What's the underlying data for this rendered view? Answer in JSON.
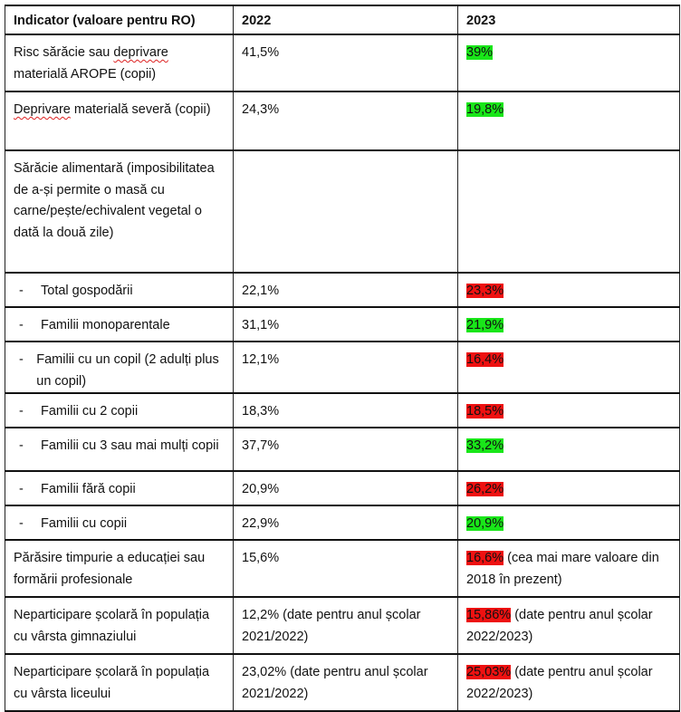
{
  "header": {
    "indicator": "Indicator (valoare pentru RO)",
    "y2022": "2022",
    "y2023": "2023"
  },
  "colors": {
    "better": "#19e619",
    "worse": "#ee1111"
  },
  "rows": [
    {
      "label": "Risc sărăcie sau deprivare materială AROPE (copii)",
      "v2022": "41,5%",
      "v2023": "39%",
      "v2023_note": "",
      "trend": "green",
      "sub": false,
      "h": 63
    },
    {
      "label": "Deprivare materială severă  (copii)",
      "v2022": "24,3%",
      "v2023": "19,8%",
      "v2023_note": "",
      "trend": "green",
      "sub": false,
      "h": 65
    },
    {
      "label": "Sărăcie alimentară (imposibilitatea de a-și permite o masă cu carne/pește/echivalent vegetal o dată la două zile)",
      "v2022": "",
      "v2023": "",
      "v2023_note": "",
      "trend": "",
      "sub": false,
      "h": 135
    },
    {
      "label": "Total gospodării",
      "v2022": "22,1%",
      "v2023": "23,3%",
      "v2023_note": "",
      "trend": "red",
      "sub": true,
      "h": 38
    },
    {
      "label": "Familii monoparentale",
      "v2022": "31,1%",
      "v2023": "21,9%",
      "v2023_note": "",
      "trend": "green",
      "sub": true,
      "h": 38
    },
    {
      "label": "Familii cu un copil (2 adulți plus un copil)",
      "v2022": "12,1%",
      "v2023": "16,4%",
      "v2023_note": "",
      "trend": "red",
      "sub": true,
      "h": 48
    },
    {
      "label": "Familii cu 2 copii",
      "v2022": "18,3%",
      "v2023": "18,5%",
      "v2023_note": "",
      "trend": "red",
      "sub": true,
      "h": 38
    },
    {
      "label": "Familii cu 3 sau mai mulți copii",
      "v2022": "37,7%",
      "v2023": "33,2%",
      "v2023_note": "",
      "trend": "green",
      "sub": true,
      "h": 48
    },
    {
      "label": "Familii fără copii",
      "v2022": "20,9%",
      "v2023": "26,2%",
      "v2023_note": "",
      "trend": "red",
      "sub": true,
      "h": 38
    },
    {
      "label": "Familii cu copii",
      "v2022": "22,9%",
      "v2023": "20,9%",
      "v2023_note": "",
      "trend": "green",
      "sub": true,
      "h": 38
    },
    {
      "label": "Părăsire timpurie a educației sau formării profesionale",
      "v2022": "15,6%",
      "v2023": "16,6%",
      "v2023_note": " (cea mai mare valoare din 2018  în prezent)",
      "trend": "red",
      "sub": false,
      "h": 63
    },
    {
      "label": "Neparticipare școlară în populația cu vârsta gimnaziului",
      "v2022": "12,2% (date pentru anul școlar 2021/2022)",
      "v2023": "15,86%",
      "v2023_note": " (date pentru anul școlar 2022/2023)",
      "trend": "red",
      "sub": false,
      "h": 63
    },
    {
      "label": "Neparticipare școlară în populația cu vârsta liceului",
      "v2022": "23,02% (date pentru anul școlar 2021/2022)",
      "v2023": "25,03%",
      "v2023_note": " (date pentru anul școlar 2022/2023)",
      "trend": "red",
      "sub": false,
      "h": 63
    }
  ],
  "dash": "-"
}
